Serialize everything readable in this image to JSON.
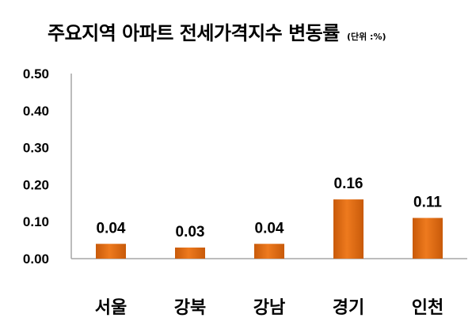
{
  "chart_data": {
    "type": "bar",
    "title": "주요지역 아파트 전세가격지수 변동률",
    "unit_note": "(단위 :%)",
    "categories": [
      "서울",
      "강북",
      "강남",
      "경기",
      "인천"
    ],
    "values": [
      0.04,
      0.03,
      0.04,
      0.16,
      0.11
    ],
    "data_labels": [
      "0.04",
      "0.03",
      "0.04",
      "0.16",
      "0.11"
    ],
    "y_ticks": [
      "0.00",
      "0.10",
      "0.20",
      "0.30",
      "0.40",
      "0.50"
    ],
    "ylim": [
      0,
      0.5
    ],
    "grid": false,
    "legend": "none",
    "bar_color": "#EE7A1E",
    "bar_color_dark": "#C85A0A"
  }
}
